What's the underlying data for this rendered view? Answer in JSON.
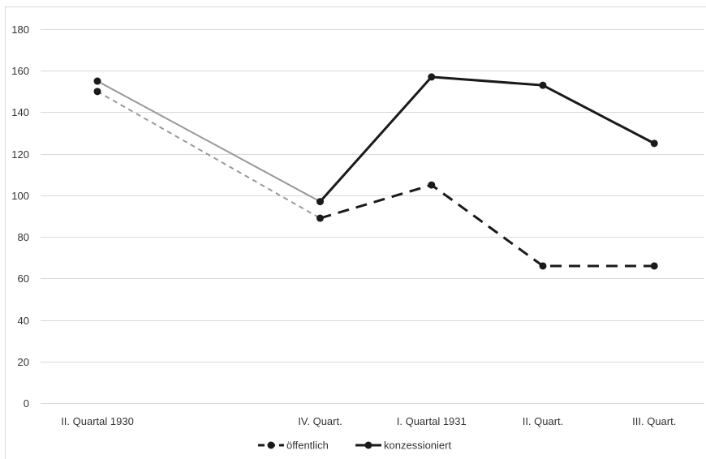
{
  "chart_data": {
    "type": "line",
    "title": "",
    "xlabel": "",
    "ylabel": "",
    "categories": [
      "II. Quartal 1930",
      "IV. Quart.",
      "I. Quartal 1931",
      "II. Quart.",
      "III. Quart."
    ],
    "x_positions": [
      0,
      2,
      3,
      4,
      5
    ],
    "ylim": [
      0,
      180
    ],
    "yticks": [
      0,
      20,
      40,
      60,
      80,
      100,
      120,
      140,
      160,
      180
    ],
    "grid": true,
    "legend_position": "bottom",
    "series": [
      {
        "name": "öffentlich",
        "values": [
          150,
          89,
          105,
          66,
          66
        ],
        "color": "#1a1a1a",
        "bridge_color": "#999999",
        "dash": "dashed"
      },
      {
        "name": "konzessioniert",
        "values": [
          155,
          97,
          157,
          153,
          125
        ],
        "color": "#1a1a1a",
        "bridge_color": "#999999",
        "dash": "solid"
      }
    ]
  }
}
